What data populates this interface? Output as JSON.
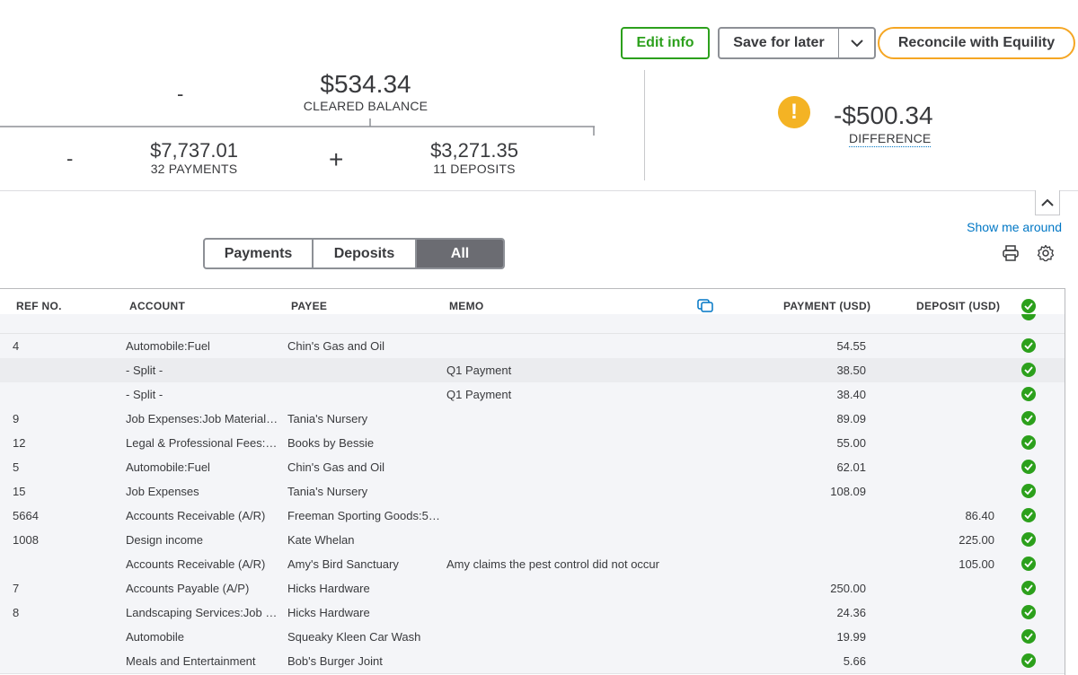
{
  "toolbar": {
    "edit_info": "Edit info",
    "save_for_later": "Save for later",
    "reconcile": "Reconcile with Equility"
  },
  "summary": {
    "minus_sign": "-",
    "plus_sign": "+",
    "cleared_balance": "$534.34",
    "cleared_label": "CLEARED BALANCE",
    "payments_amount": "$7,737.01",
    "payments_label": "32 PAYMENTS",
    "deposits_amount": "$3,271.35",
    "deposits_label": "11 DEPOSITS",
    "difference_amount": "-$500.34",
    "difference_label": "DIFFERENCE",
    "warning_glyph": "!"
  },
  "links": {
    "show_me_around": "Show me around"
  },
  "tabs": [
    "Payments",
    "Deposits",
    "All"
  ],
  "table": {
    "headers": {
      "ref": "REF NO.",
      "account": "ACCOUNT",
      "payee": "PAYEE",
      "memo": "MEMO",
      "payment": "PAYMENT (USD)",
      "deposit": "DEPOSIT (USD)"
    },
    "rows": [
      {
        "ref": "4",
        "account": "Automobile:Fuel",
        "payee": "Chin's Gas and Oil",
        "memo": "",
        "payment": "54.55",
        "deposit": ""
      },
      {
        "ref": "",
        "account": "- Split -",
        "payee": "",
        "memo": "Q1 Payment",
        "payment": "38.50",
        "deposit": ""
      },
      {
        "ref": "",
        "account": "- Split -",
        "payee": "",
        "memo": "Q1 Payment",
        "payment": "38.40",
        "deposit": ""
      },
      {
        "ref": "9",
        "account": "Job Expenses:Job Materials:...",
        "payee": "Tania's Nursery",
        "memo": "",
        "payment": "89.09",
        "deposit": ""
      },
      {
        "ref": "12",
        "account": "Legal & Professional Fees:Bo...",
        "payee": "Books by Bessie",
        "memo": "",
        "payment": "55.00",
        "deposit": ""
      },
      {
        "ref": "5",
        "account": "Automobile:Fuel",
        "payee": "Chin's Gas and Oil",
        "memo": "",
        "payment": "62.01",
        "deposit": ""
      },
      {
        "ref": "15",
        "account": "Job Expenses",
        "payee": "Tania's Nursery",
        "memo": "",
        "payment": "108.09",
        "deposit": ""
      },
      {
        "ref": "5664",
        "account": "Accounts Receivable (A/R)",
        "payee": "Freeman Sporting Goods:55...",
        "memo": "",
        "payment": "",
        "deposit": "86.40"
      },
      {
        "ref": "1008",
        "account": "Design income",
        "payee": "Kate Whelan",
        "memo": "",
        "payment": "",
        "deposit": "225.00"
      },
      {
        "ref": "",
        "account": "Accounts Receivable (A/R)",
        "payee": "Amy's Bird Sanctuary",
        "memo": "Amy claims the pest control did not occur",
        "payment": "",
        "deposit": "105.00"
      },
      {
        "ref": "7",
        "account": "Accounts Payable (A/P)",
        "payee": "Hicks Hardware",
        "memo": "",
        "payment": "250.00",
        "deposit": ""
      },
      {
        "ref": "8",
        "account": "Landscaping Services:Job M...",
        "payee": "Hicks Hardware",
        "memo": "",
        "payment": "24.36",
        "deposit": ""
      },
      {
        "ref": "",
        "account": "Automobile",
        "payee": "Squeaky Kleen Car Wash",
        "memo": "",
        "payment": "19.99",
        "deposit": ""
      },
      {
        "ref": "",
        "account": "Meals and Entertainment",
        "payee": "Bob's Burger Joint",
        "memo": "",
        "payment": "5.66",
        "deposit": ""
      }
    ]
  },
  "icons": {
    "chevron": "chevron-up-icon",
    "print": "print-icon",
    "settings": "gear-icon",
    "copy": "copy-icon",
    "check": "check-circle-icon"
  },
  "colors": {
    "green": "#2ca01c",
    "orange": "#f5a623",
    "warning": "#f4b324",
    "link": "#0077c5"
  }
}
